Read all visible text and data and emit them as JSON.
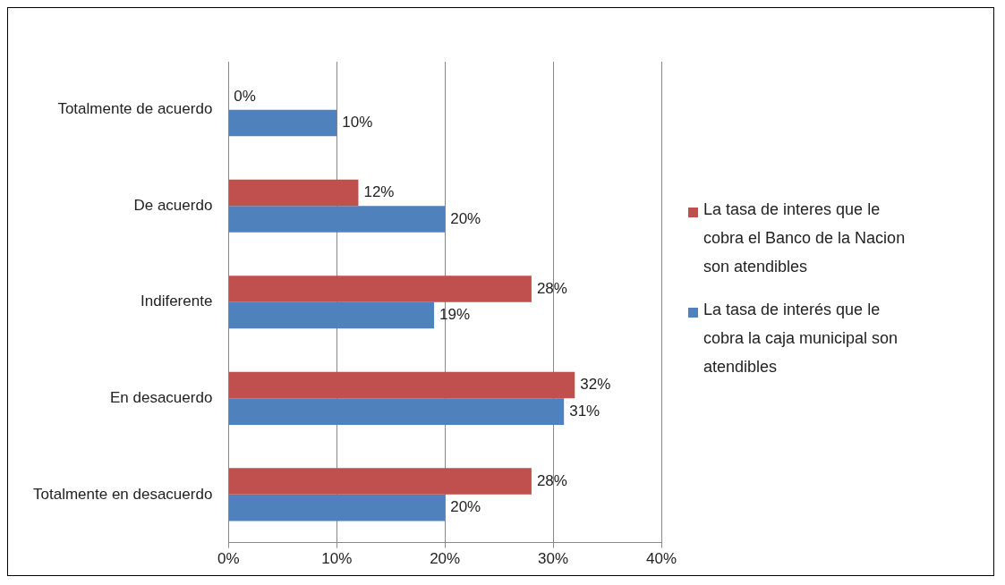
{
  "chart_data": {
    "type": "bar",
    "orientation": "horizontal",
    "categories": [
      "Totalmente de acuerdo",
      "De acuerdo",
      "Indiferente",
      "En desacuerdo",
      "Totalmente en desacuerdo"
    ],
    "series": [
      {
        "name": "La tasa de interes que le cobra el Banco de la Nacion son atendibles",
        "color": "#c0504d",
        "values": [
          0,
          12,
          28,
          32,
          28
        ],
        "value_labels": [
          "0%",
          "12%",
          "28%",
          "32%",
          "28%"
        ]
      },
      {
        "name": "La tasa de interés que le cobra la caja municipal son atendibles",
        "color": "#4f81bd",
        "values": [
          10,
          20,
          19,
          31,
          20
        ],
        "value_labels": [
          "10%",
          "20%",
          "19%",
          "31%",
          "20%"
        ]
      }
    ],
    "xlim": [
      0,
      40
    ],
    "xticks": [
      {
        "value": 0,
        "label": "0%"
      },
      {
        "value": 10,
        "label": "10%"
      },
      {
        "value": 20,
        "label": "20%"
      },
      {
        "value": 30,
        "label": "30%"
      },
      {
        "value": 40,
        "label": "40%"
      }
    ],
    "grid": "x",
    "legend": "right"
  }
}
